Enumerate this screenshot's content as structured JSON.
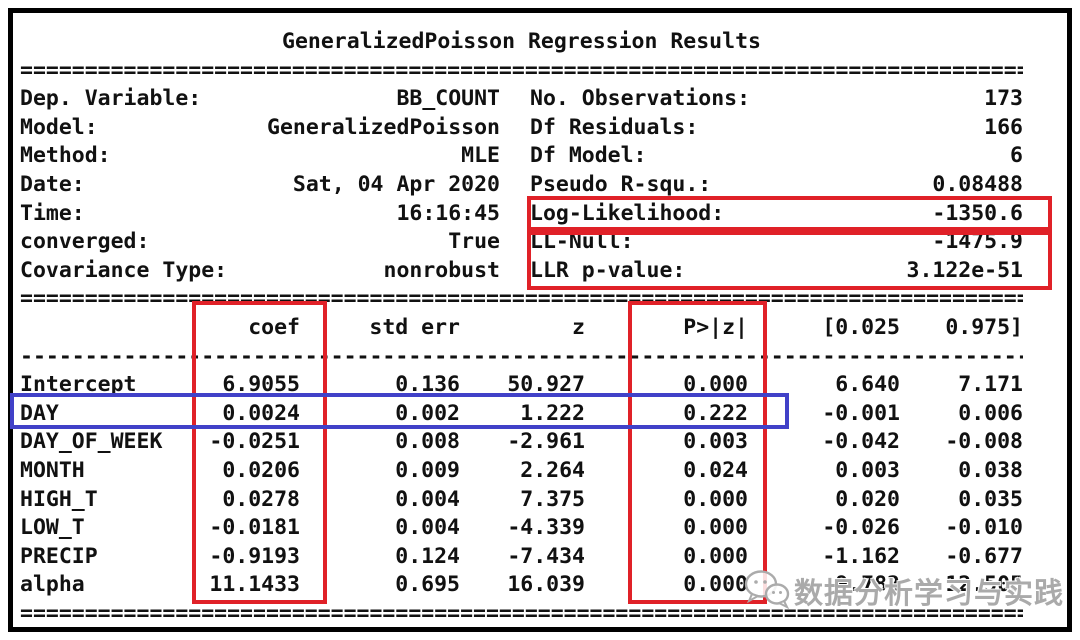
{
  "title": "GeneralizedPoisson Regression Results",
  "info": {
    "rows": [
      {
        "l_label": "Dep. Variable:",
        "l_value": "BB_COUNT",
        "r_label": "No. Observations:",
        "r_value": "173"
      },
      {
        "l_label": "Model:",
        "l_value": "GeneralizedPoisson",
        "r_label": "Df Residuals:",
        "r_value": "166"
      },
      {
        "l_label": "Method:",
        "l_value": "MLE",
        "r_label": "Df Model:",
        "r_value": "6"
      },
      {
        "l_label": "Date:",
        "l_value": "Sat, 04 Apr 2020",
        "r_label": "Pseudo R-squ.:",
        "r_value": "0.08488"
      },
      {
        "l_label": "Time:",
        "l_value": "16:16:45",
        "r_label": "Log-Likelihood:",
        "r_value": "-1350.6"
      },
      {
        "l_label": "converged:",
        "l_value": "True",
        "r_label": "LL-Null:",
        "r_value": "-1475.9"
      },
      {
        "l_label": "Covariance Type:",
        "l_value": "nonrobust",
        "r_label": "LLR p-value:",
        "r_value": "3.122e-51"
      }
    ]
  },
  "coef_table": {
    "headers": [
      "",
      "coef",
      "std err",
      "z",
      "P>|z|",
      "[0.025",
      "0.975]"
    ],
    "rows": [
      {
        "name": "Intercept",
        "coef": "6.9055",
        "std_err": "0.136",
        "z": "50.927",
        "p": "0.000",
        "ci_low": "6.640",
        "ci_high": "7.171"
      },
      {
        "name": "DAY",
        "coef": "0.0024",
        "std_err": "0.002",
        "z": "1.222",
        "p": "0.222",
        "ci_low": "-0.001",
        "ci_high": "0.006"
      },
      {
        "name": "DAY_OF_WEEK",
        "coef": "-0.0251",
        "std_err": "0.008",
        "z": "-2.961",
        "p": "0.003",
        "ci_low": "-0.042",
        "ci_high": "-0.008"
      },
      {
        "name": "MONTH",
        "coef": "0.0206",
        "std_err": "0.009",
        "z": "2.264",
        "p": "0.024",
        "ci_low": "0.003",
        "ci_high": "0.038"
      },
      {
        "name": "HIGH_T",
        "coef": "0.0278",
        "std_err": "0.004",
        "z": "7.375",
        "p": "0.000",
        "ci_low": "0.020",
        "ci_high": "0.035"
      },
      {
        "name": "LOW_T",
        "coef": "-0.0181",
        "std_err": "0.004",
        "z": "-4.339",
        "p": "0.000",
        "ci_low": "-0.026",
        "ci_high": "-0.010"
      },
      {
        "name": "PRECIP",
        "coef": "-0.9193",
        "std_err": "0.124",
        "z": "-7.434",
        "p": "0.000",
        "ci_low": "-1.162",
        "ci_high": "-0.677"
      },
      {
        "name": "alpha",
        "coef": "11.1433",
        "std_err": "0.695",
        "z": "16.039",
        "p": "0.000",
        "ci_low": "9.782",
        "ci_high": "12.505"
      }
    ]
  },
  "annotations": {
    "red_color": "#e02128",
    "blue_color": "#4141c8",
    "red_boxes": [
      "log-likelihood-row",
      "ll-null-and-llr-pvalue-rows",
      "coef-column",
      "p-value-column"
    ],
    "blue_boxes": [
      "day-row"
    ]
  },
  "watermark": {
    "icon": "wechat-icon",
    "text": "数据分析学习与实践"
  }
}
